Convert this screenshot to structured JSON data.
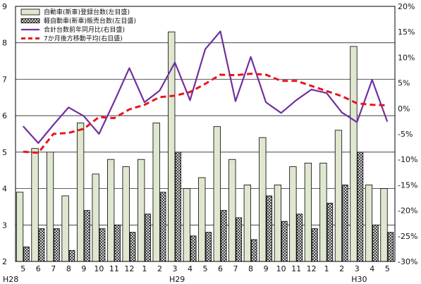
{
  "chart_data": {
    "type": "bar",
    "title": "",
    "xlabel": "",
    "ylabel": "",
    "categories": [
      "5",
      "6",
      "7",
      "8",
      "9",
      "10",
      "11",
      "12",
      "1",
      "2",
      "3",
      "4",
      "5",
      "6",
      "7",
      "8",
      "9",
      "10",
      "11",
      "12",
      "1",
      "2",
      "3",
      "4",
      "5"
    ],
    "year_labels": [
      {
        "index": 0,
        "label": "H28"
      },
      {
        "index": 10,
        "label": "H29"
      },
      {
        "index": 22,
        "label": "H30"
      }
    ],
    "y_left": {
      "lim": [
        2,
        9
      ],
      "ticks": [
        "2",
        "3",
        "4",
        "5",
        "6",
        "7",
        "8",
        "9"
      ]
    },
    "y_right": {
      "lim": [
        -30,
        20
      ],
      "ticks": [
        "-30%",
        "-25%",
        "-20%",
        "-15%",
        "-10%",
        "-5%",
        "0%",
        "5%",
        "10%",
        "15%",
        "20%"
      ]
    },
    "series": [
      {
        "name": "自動車(新車)登録台数(左目盛)",
        "kind": "bar",
        "axis": "left",
        "color": "#dfe8cf",
        "values": [
          3.9,
          5.1,
          5.0,
          3.8,
          5.8,
          4.4,
          4.8,
          4.6,
          4.8,
          5.8,
          8.3,
          4.0,
          4.3,
          5.7,
          4.8,
          4.1,
          5.4,
          4.1,
          4.6,
          4.7,
          4.7,
          5.6,
          7.9,
          4.1,
          4.0
        ]
      },
      {
        "name": "軽自動車(新車)販売台数(左目盛)",
        "kind": "bar",
        "axis": "left",
        "color": "#8a8a8a",
        "values": [
          2.4,
          2.9,
          2.9,
          2.3,
          3.4,
          2.9,
          3.0,
          2.8,
          3.3,
          3.9,
          5.0,
          2.7,
          2.8,
          3.4,
          3.2,
          2.6,
          3.8,
          3.1,
          3.3,
          2.9,
          3.6,
          4.1,
          5.0,
          3.0,
          2.8
        ]
      },
      {
        "name": "合計台数前年同月比(右目盛)",
        "kind": "line",
        "axis": "right",
        "color": "#7030a0",
        "values": [
          -3.5,
          -6.8,
          -3.2,
          0.2,
          -1.5,
          -5.0,
          1.3,
          7.9,
          1.2,
          3.5,
          9.0,
          1.6,
          11.6,
          15.1,
          1.4,
          10.1,
          1.2,
          -0.9,
          1.6,
          3.7,
          3.0,
          -0.8,
          -2.7,
          5.6,
          -2.6
        ]
      },
      {
        "name": "7か月後方移動平均(右目盛)",
        "kind": "dashed-line",
        "axis": "right",
        "color": "#e8141e",
        "values": [
          -8.5,
          -8.7,
          -5.0,
          -4.8,
          -4.0,
          -1.7,
          -1.9,
          -0.2,
          0.7,
          2.2,
          2.5,
          3.2,
          4.8,
          6.6,
          6.5,
          6.8,
          6.6,
          5.4,
          5.4,
          4.4,
          3.4,
          2.4,
          1.0,
          0.7,
          0.6
        ]
      }
    ],
    "legend_position": "top-left",
    "grid": "horizontal"
  }
}
